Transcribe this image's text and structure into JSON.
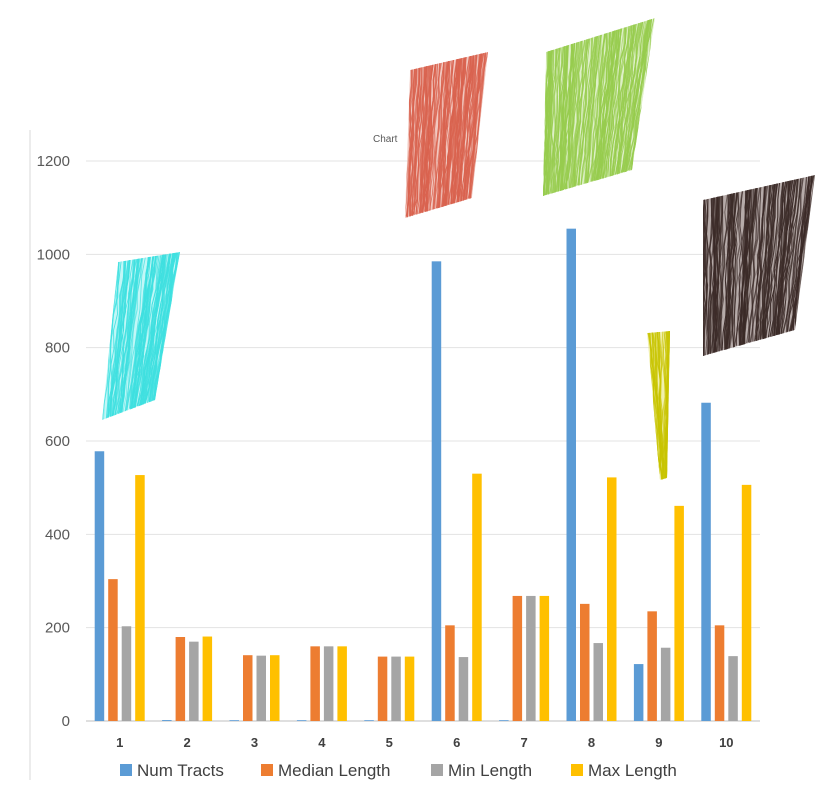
{
  "chart_data": {
    "type": "bar",
    "title": "Chart",
    "categories": [
      "1",
      "2",
      "3",
      "4",
      "5",
      "6",
      "7",
      "8",
      "9",
      "10"
    ],
    "series": [
      {
        "name": "Num Tracts",
        "color": "#5b9bd5",
        "values": [
          578,
          2,
          1,
          1,
          1,
          985,
          1,
          1055,
          122,
          682
        ]
      },
      {
        "name": "Median Length",
        "color": "#ed7d31",
        "values": [
          304,
          180,
          141,
          160,
          138,
          205,
          268,
          251,
          235,
          205
        ]
      },
      {
        "name": "Min Length",
        "color": "#a5a5a5",
        "values": [
          203,
          170,
          140,
          160,
          138,
          137,
          268,
          167,
          157,
          139
        ]
      },
      {
        "name": "Max Length",
        "color": "#ffc000",
        "values": [
          527,
          181,
          141,
          160,
          138,
          530,
          268,
          522,
          461,
          506
        ]
      }
    ],
    "ylim": [
      0,
      1200
    ],
    "yticks": [
      0,
      200,
      400,
      600,
      800,
      1000,
      1200
    ],
    "grid": true,
    "legend": "bottom",
    "xlabel": "",
    "ylabel": ""
  },
  "images": [
    {
      "icon": "tract-bundle-cyan",
      "color": "#3fe0e0"
    },
    {
      "icon": "tract-bundle-red",
      "color": "#d9634f"
    },
    {
      "icon": "tract-bundle-green",
      "color": "#97cc4e"
    },
    {
      "icon": "tract-bundle-yellow",
      "color": "#c8c400"
    },
    {
      "icon": "tract-bundle-brown",
      "color": "#3b2b28"
    }
  ]
}
